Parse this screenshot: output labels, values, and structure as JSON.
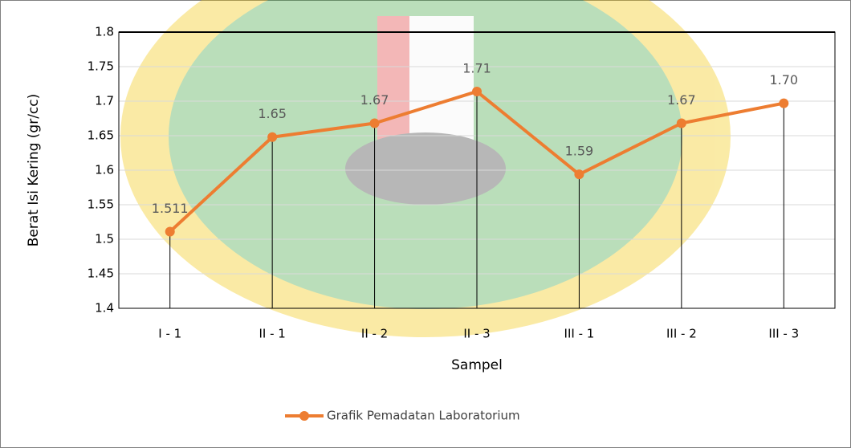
{
  "chart_data": {
    "type": "line",
    "y_label": "Berat Isi Kering (gr/cc)",
    "x_label": "Sampel",
    "categories": [
      "I - 1",
      "II - 1",
      "II - 2",
      "II - 3",
      "III - 1",
      "III - 2",
      "III - 3"
    ],
    "series": [
      {
        "name": "Grafik Pemadatan Laboratorium",
        "color": "#ed7d31",
        "values": [
          1.511,
          1.648,
          1.668,
          1.714,
          1.594,
          1.668,
          1.697
        ],
        "value_labels": [
          "1.511",
          "1.65",
          "1.67",
          "1.71",
          "1.59",
          "1.67",
          "1.70"
        ]
      }
    ],
    "ylim": [
      1.4,
      1.8
    ],
    "yticks": [
      1.4,
      1.45,
      1.5,
      1.55,
      1.6,
      1.65,
      1.7,
      1.75,
      1.8
    ],
    "grid": true,
    "legend": "bottom"
  }
}
